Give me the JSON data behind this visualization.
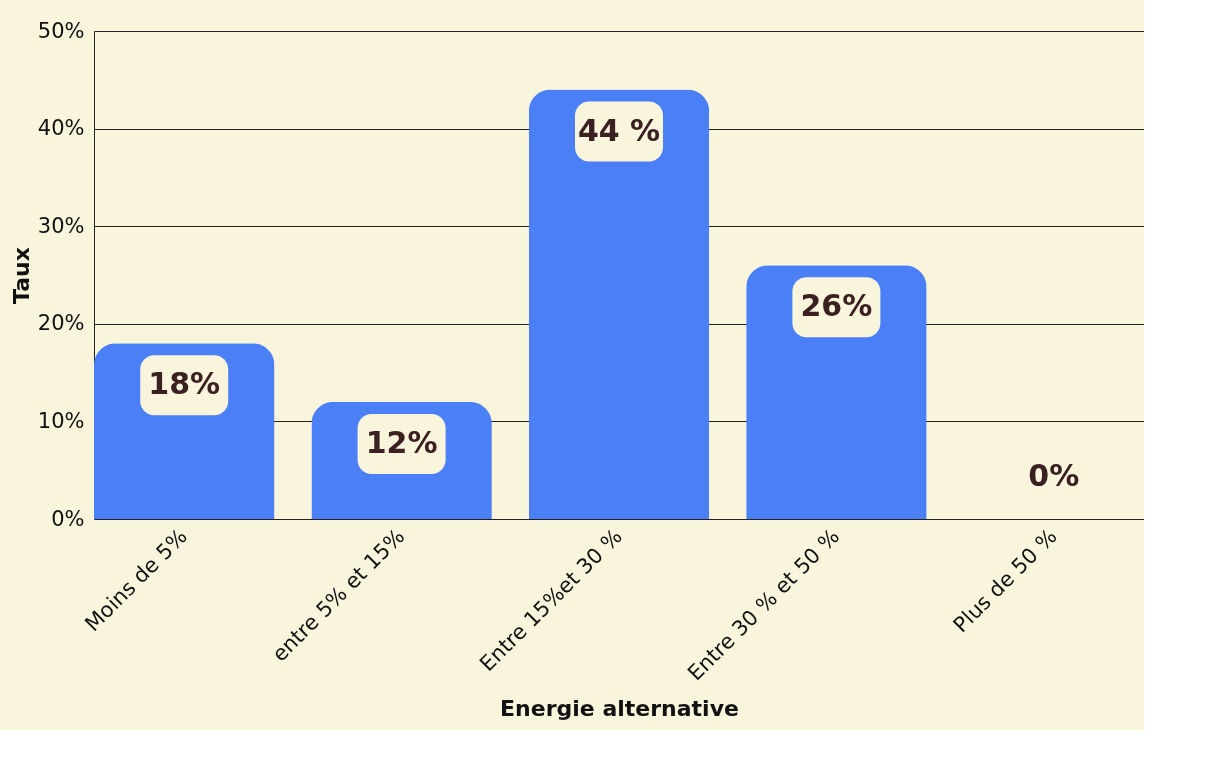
{
  "chart_data": {
    "type": "bar",
    "xlabel": "Energie alternative",
    "ylabel": "Taux",
    "categories": [
      "Moins de 5%",
      "entre 5% et 15%",
      "Entre 15%et 30 %",
      "Entre 30 % et 50 %",
      "Plus de 50 %"
    ],
    "values": [
      18,
      12,
      44,
      26,
      0
    ],
    "value_labels": [
      "18%",
      "12%",
      "44 %",
      "26%",
      "0%"
    ],
    "color": "#4a7ff5",
    "ylim": [
      0,
      50
    ],
    "yticks": [
      {
        "value": 0,
        "label": "0%"
      },
      {
        "value": 10,
        "label": "10%"
      },
      {
        "value": 20,
        "label": "20%"
      },
      {
        "value": 30,
        "label": "30%"
      },
      {
        "value": 40,
        "label": "40%"
      },
      {
        "value": 50,
        "label": "50%"
      }
    ],
    "grid": "y"
  }
}
